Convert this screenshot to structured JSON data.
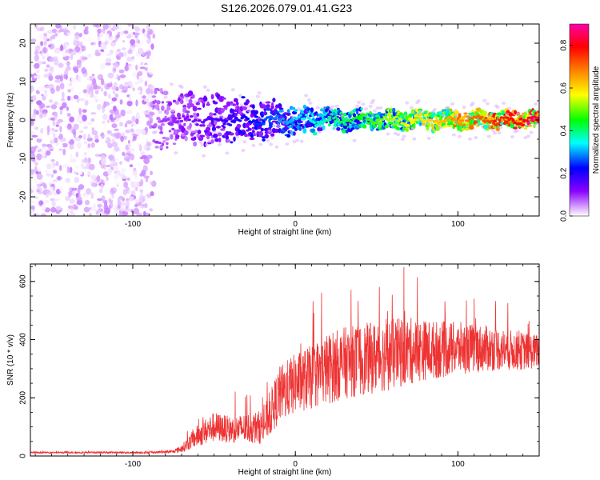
{
  "title": "S126.2026.079.01.41.G23",
  "chart_data": [
    {
      "type": "heatmap",
      "xlabel": "Height of straight line (km)",
      "ylabel": "Frequency (Hz)",
      "xlim": [
        -163,
        150
      ],
      "ylim": [
        -25,
        25
      ],
      "xticks": [
        -100,
        0,
        100
      ],
      "yticks": [
        -20,
        -10,
        0,
        10,
        20
      ],
      "colorbar": {
        "label": "Normalized spectral amplitude",
        "range": [
          0,
          0.9
        ],
        "ticks": [
          0.0,
          0.2,
          0.4,
          0.6,
          0.8
        ],
        "colormap": [
          "#ffffff",
          "#cc88ff",
          "#8800ff",
          "#0000ff",
          "#00ffff",
          "#00ff00",
          "#ffff00",
          "#ff8800",
          "#ff0000",
          "#ff00aa"
        ]
      },
      "regions": [
        {
          "name": "noise",
          "x_range": [
            -163,
            -87
          ],
          "y_range": [
            -25,
            25
          ],
          "amplitude": [
            0.0,
            0.12
          ]
        },
        {
          "name": "signal",
          "x_range": [
            -87,
            150
          ],
          "center_freq_hz": 0,
          "amplitude_start": 0.15,
          "amplitude_end": 0.85
        }
      ]
    },
    {
      "type": "line",
      "xlabel": "Height of straight line (km)",
      "ylabel": "SNR (10 * v/v)",
      "xlim": [
        -163,
        150
      ],
      "ylim": [
        0,
        660
      ],
      "xticks": [
        -100,
        0,
        100
      ],
      "yticks": [
        0,
        200,
        400,
        600
      ],
      "series": [
        {
          "name": "SNR",
          "color": "#ee3333",
          "envelope_x": [
            -163,
            -90,
            -75,
            -70,
            -60,
            -50,
            -40,
            -30,
            -20,
            -15,
            -10,
            0,
            10,
            20,
            30,
            40,
            50,
            60,
            70,
            80,
            90,
            100,
            110,
            120,
            130,
            140,
            150
          ],
          "envelope_mean": [
            12,
            12,
            15,
            25,
            70,
            100,
            90,
            95,
            100,
            150,
            210,
            250,
            270,
            300,
            320,
            330,
            340,
            350,
            360,
            365,
            365,
            370,
            370,
            370,
            365,
            360,
            360
          ],
          "envelope_spread": [
            4,
            5,
            8,
            20,
            60,
            80,
            70,
            80,
            90,
            120,
            150,
            160,
            170,
            190,
            190,
            190,
            190,
            190,
            180,
            160,
            150,
            140,
            130,
            120,
            110,
            100,
            90
          ]
        }
      ]
    }
  ]
}
